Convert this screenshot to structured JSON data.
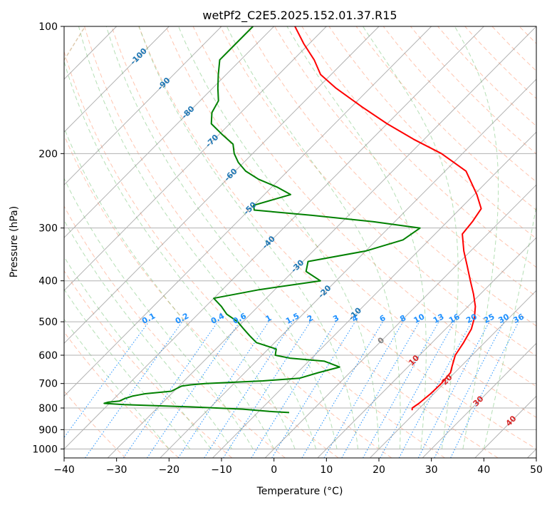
{
  "chart_data": {
    "type": "line",
    "title": "wetPf2_C2E5.2025.152.01.37.R15",
    "xlabel": "Temperature (°C)",
    "ylabel": "Pressure (hPa)",
    "xlim": [
      -40,
      50
    ],
    "ylim": [
      1050,
      100
    ],
    "y_scale": "log",
    "skew_deg_per_decade": 80,
    "x_ticks": [
      -40,
      -30,
      -20,
      -10,
      0,
      10,
      20,
      30,
      40,
      50
    ],
    "y_ticks": [
      1000,
      900,
      800,
      700,
      600,
      500,
      400,
      300,
      200,
      100
    ],
    "grid": true,
    "colors": {
      "temperature": "#ff0000",
      "dewpoint": "#008000",
      "isotherm": "#808080",
      "dry_adiabat": "#ff7f50",
      "moist_adiabat": "#5cb85c",
      "mixing_ratio": "#1e90ff",
      "isotherm_label_cold": "#1f77b4",
      "isotherm_label_warm": "#d62728",
      "isotherm_label_zero": "#808080",
      "mixing_label": "#1e90ff",
      "accent_curve": "#d2b48c"
    },
    "series": [
      {
        "key": "temperature",
        "p": [
          810,
          800,
          780,
          740,
          700,
          660,
          640,
          600,
          560,
          520,
          490,
          460,
          430,
          400,
          370,
          340,
          310,
          290,
          270,
          250,
          220,
          200,
          185,
          170,
          155,
          140,
          130,
          120,
          110,
          100
        ],
        "t": [
          19.0,
          18.6,
          19.0,
          19.4,
          19.5,
          19.2,
          18.4,
          16.8,
          16.0,
          14.9,
          13.4,
          11.4,
          8.7,
          5.6,
          2.3,
          -1.3,
          -4.8,
          -5.2,
          -6.0,
          -9.5,
          -16.0,
          -24.0,
          -32.0,
          -40.0,
          -48.0,
          -56.5,
          -62.0,
          -66.0,
          -71.0,
          -76.0
        ]
      },
      {
        "key": "dewpoint",
        "p": [
          820,
          815,
          805,
          795,
          785,
          780,
          775,
          770,
          760,
          750,
          745,
          740,
          730,
          720,
          710,
          705,
          700,
          690,
          680,
          660,
          640,
          620,
          610,
          600,
          580,
          560,
          540,
          520,
          500,
          480,
          460,
          440,
          420,
          400,
          380,
          360,
          340,
          320,
          300,
          290,
          280,
          272,
          265,
          250,
          240,
          230,
          220,
          210,
          200,
          190,
          180,
          170,
          160,
          150,
          140,
          130,
          120,
          110,
          100
        ],
        "t": [
          -4.0,
          -8.0,
          -13.5,
          -24.0,
          -37.0,
          -41.0,
          -40.5,
          -38.5,
          -38.0,
          -37.0,
          -36.0,
          -35.0,
          -30.5,
          -30.0,
          -29.5,
          -28.0,
          -25.5,
          -15.0,
          -8.5,
          -6.0,
          -3.0,
          -7.0,
          -14.0,
          -17.5,
          -18.5,
          -23.5,
          -26.0,
          -28.5,
          -31.0,
          -34.5,
          -37.0,
          -40.0,
          -33.0,
          -23.0,
          -27.5,
          -29.0,
          -20.0,
          -15.0,
          -14.0,
          -24.0,
          -37.0,
          -49.0,
          -50.0,
          -45.0,
          -49.0,
          -54.0,
          -58.0,
          -61.0,
          -63.5,
          -65.5,
          -69.5,
          -73.5,
          -75.5,
          -76.5,
          -79.0,
          -81.5,
          -84.0,
          -84.0,
          -84.0
        ]
      }
    ],
    "isotherm_labels": [
      "-100",
      "-90",
      "-80",
      "-70",
      "-60",
      "-50",
      "-40",
      "-30",
      "-20",
      "-10",
      "0",
      "10",
      "20",
      "30",
      "40"
    ],
    "mixing_ratio_labels": [
      "0.1",
      "0.2",
      "0.4",
      "0.6",
      "1",
      "1.5",
      "2",
      "3",
      "4",
      "6",
      "8",
      "10",
      "13",
      "16",
      "20",
      "25",
      "30",
      "36"
    ]
  }
}
